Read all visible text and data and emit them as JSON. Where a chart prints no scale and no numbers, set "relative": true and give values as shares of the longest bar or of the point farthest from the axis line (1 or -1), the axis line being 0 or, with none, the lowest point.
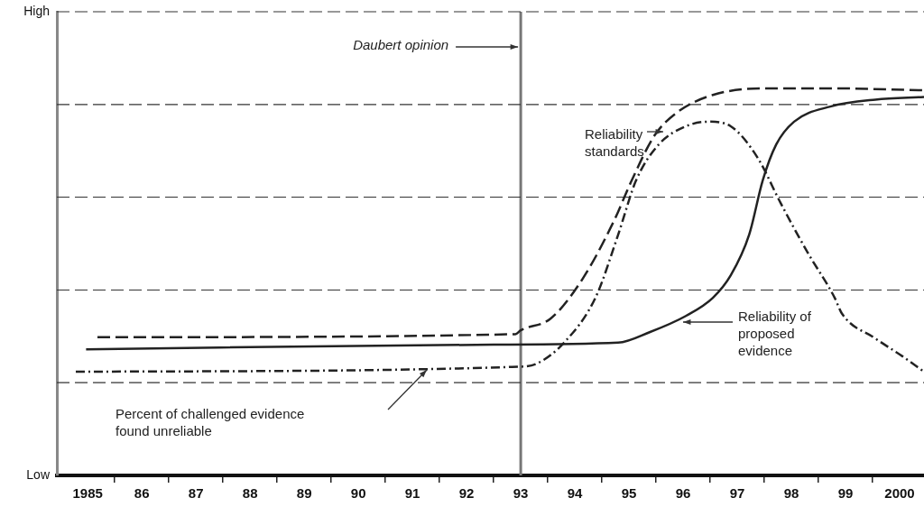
{
  "chart_data": {
    "type": "line",
    "relative": true,
    "xlim": [
      1984.43,
      2000.45
    ],
    "xticks": [
      {
        "value": 1985,
        "label": "1985"
      },
      {
        "value": 1985.5,
        "label": null
      },
      {
        "value": 1986,
        "label": "86"
      },
      {
        "value": 1986.5,
        "label": null
      },
      {
        "value": 1987,
        "label": "87"
      },
      {
        "value": 1987.5,
        "label": null
      },
      {
        "value": 1988,
        "label": "88"
      },
      {
        "value": 1988.5,
        "label": null
      },
      {
        "value": 1989,
        "label": "89"
      },
      {
        "value": 1989.5,
        "label": null
      },
      {
        "value": 1990,
        "label": "90"
      },
      {
        "value": 1990.5,
        "label": null
      },
      {
        "value": 1991,
        "label": "91"
      },
      {
        "value": 1991.5,
        "label": null
      },
      {
        "value": 1992,
        "label": "92"
      },
      {
        "value": 1992.5,
        "label": null
      },
      {
        "value": 1993,
        "label": "93"
      },
      {
        "value": 1993.5,
        "label": null
      },
      {
        "value": 1994,
        "label": "94"
      },
      {
        "value": 1994.5,
        "label": null
      },
      {
        "value": 1995,
        "label": "95"
      },
      {
        "value": 1995.5,
        "label": null
      },
      {
        "value": 1996,
        "label": "96"
      },
      {
        "value": 1996.5,
        "label": null
      },
      {
        "value": 1997,
        "label": "97"
      },
      {
        "value": 1997.5,
        "label": null
      },
      {
        "value": 1998,
        "label": "98"
      },
      {
        "value": 1998.5,
        "label": null
      },
      {
        "value": 1999,
        "label": "99"
      },
      {
        "value": 1999.5,
        "label": null
      },
      {
        "value": 2000,
        "label": "2000"
      }
    ],
    "legend": false,
    "marker": "none",
    "annotations": [
      "High",
      "Low"
    ],
    "series": [
      {
        "name": "Reliability standards",
        "color": "#222222",
        "line_style": "dashed",
        "x": [
          1985.18,
          1992.9,
          1993,
          1993.55,
          1994.13,
          1994.72,
          1995.05,
          1995.47,
          1995.88,
          1996.55,
          1997.55,
          1998.72,
          2000.45
        ],
        "values": [
          0.357,
          0.365,
          0.375,
          0.405,
          0.505,
          0.657,
          0.762,
          0.878,
          0.937,
          0.983,
          1,
          1,
          0.995
        ]
      },
      {
        "name": "Reliability of proposed evidence",
        "color": "#222222",
        "line_style": "solid",
        "x": [
          1984.97,
          1992.5,
          1994.8,
          1995.38,
          1996.05,
          1996.55,
          1996.88,
          1997.22,
          1997.47,
          1997.72,
          1998.05,
          1998.72,
          1999.55,
          2000.45
        ],
        "values": [
          0.326,
          0.338,
          0.343,
          0.37,
          0.412,
          0.459,
          0.517,
          0.622,
          0.762,
          0.855,
          0.914,
          0.953,
          0.971,
          0.978
        ]
      },
      {
        "name": "Percent of challenged evidence found unreliable",
        "color": "#222222",
        "line_style": "dotted",
        "x": [
          1984.78,
          1993,
          1993.3,
          1993.8,
          1994.38,
          1994.8,
          1995.13,
          1995.55,
          1996.05,
          1996.47,
          1996.88,
          1997.38,
          1997.8,
          1998.3,
          1998.8,
          1998.93,
          1999.55,
          2000.05,
          2000.45
        ],
        "values": [
          0.268,
          0.281,
          0.289,
          0.343,
          0.459,
          0.622,
          0.762,
          0.855,
          0.902,
          0.914,
          0.902,
          0.82,
          0.704,
          0.576,
          0.459,
          0.419,
          0.354,
          0.308,
          0.268
        ]
      }
    ],
    "ref_lines": [
      {
        "axis": "x",
        "value": 1993,
        "label": "Daubert opinion",
        "color": "#777777"
      },
      {
        "axis": "y",
        "value": 0.24,
        "color": "#333333",
        "line_style": "dashed"
      },
      {
        "axis": "y",
        "value": 0.479,
        "color": "#333333",
        "line_style": "dashed"
      },
      {
        "axis": "y",
        "value": 0.719,
        "color": "#333333",
        "line_style": "dashed"
      },
      {
        "axis": "y",
        "value": 0.958,
        "color": "#333333",
        "line_style": "dashed"
      },
      {
        "axis": "y",
        "value": 1.198,
        "color": "#333333",
        "line_style": "dashed"
      }
    ]
  }
}
